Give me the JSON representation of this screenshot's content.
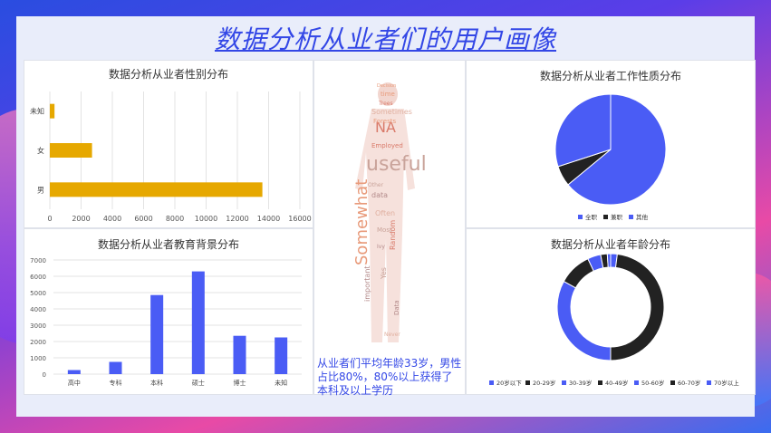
{
  "page": {
    "title": "数据分析从业者们的用户画像"
  },
  "summary": "从业者们平均年龄33岁，男性占比80%，80%以上获得了本科及以上学历",
  "word_cloud": {
    "words": [
      "time",
      "NA",
      "useful",
      "data",
      "Often",
      "Somewhat",
      "Employed",
      "Most",
      "important",
      "Sometimes",
      "Forests",
      "Random",
      "Yes",
      "Data",
      "Never",
      "Decision",
      "Trees",
      "Other",
      "Ivy"
    ]
  },
  "colors": {
    "gold": "#e6a800",
    "blue": "#4a5cf5",
    "dark": "#222222"
  },
  "chart_data": [
    {
      "id": "gender",
      "type": "bar",
      "orientation": "horizontal",
      "title": "数据分析从业者性别分布",
      "categories": [
        "未知",
        "女",
        "男"
      ],
      "values": [
        300,
        2700,
        13600
      ],
      "xlim": [
        0,
        16000
      ],
      "xticks": [
        0,
        2000,
        4000,
        6000,
        8000,
        10000,
        12000,
        14000,
        16000
      ],
      "grid": true
    },
    {
      "id": "education",
      "type": "bar",
      "title": "数据分析从业者教育背景分布",
      "categories": [
        "高中",
        "专科",
        "本科",
        "硕士",
        "博士",
        "未知"
      ],
      "values": [
        250,
        750,
        4850,
        6300,
        2350,
        2250
      ],
      "ylim": [
        0,
        7000
      ],
      "yticks": [
        0,
        1000,
        2000,
        3000,
        4000,
        5000,
        6000,
        7000
      ],
      "grid": true
    },
    {
      "id": "job_type",
      "type": "pie",
      "title": "数据分析从业者工作性质分布",
      "categories": [
        "全职",
        "兼职",
        "其他"
      ],
      "values": [
        64,
        6,
        30
      ],
      "colors": [
        "#4a5cf5",
        "#222222",
        "#4a5cf5"
      ],
      "legend": "bottom"
    },
    {
      "id": "age",
      "type": "pie",
      "variant": "donut",
      "title": "数据分析从业者年龄分布",
      "categories": [
        "20岁以下",
        "20-29岁",
        "30-39岁",
        "40-49岁",
        "50-60岁",
        "60-70岁",
        "70岁以上"
      ],
      "values": [
        2,
        48,
        33,
        10,
        4,
        2,
        1
      ],
      "colors": [
        "#4a5cf5",
        "#222222",
        "#4a5cf5",
        "#222222",
        "#4a5cf5",
        "#222222",
        "#4a5cf5"
      ],
      "legend": "bottom"
    }
  ]
}
